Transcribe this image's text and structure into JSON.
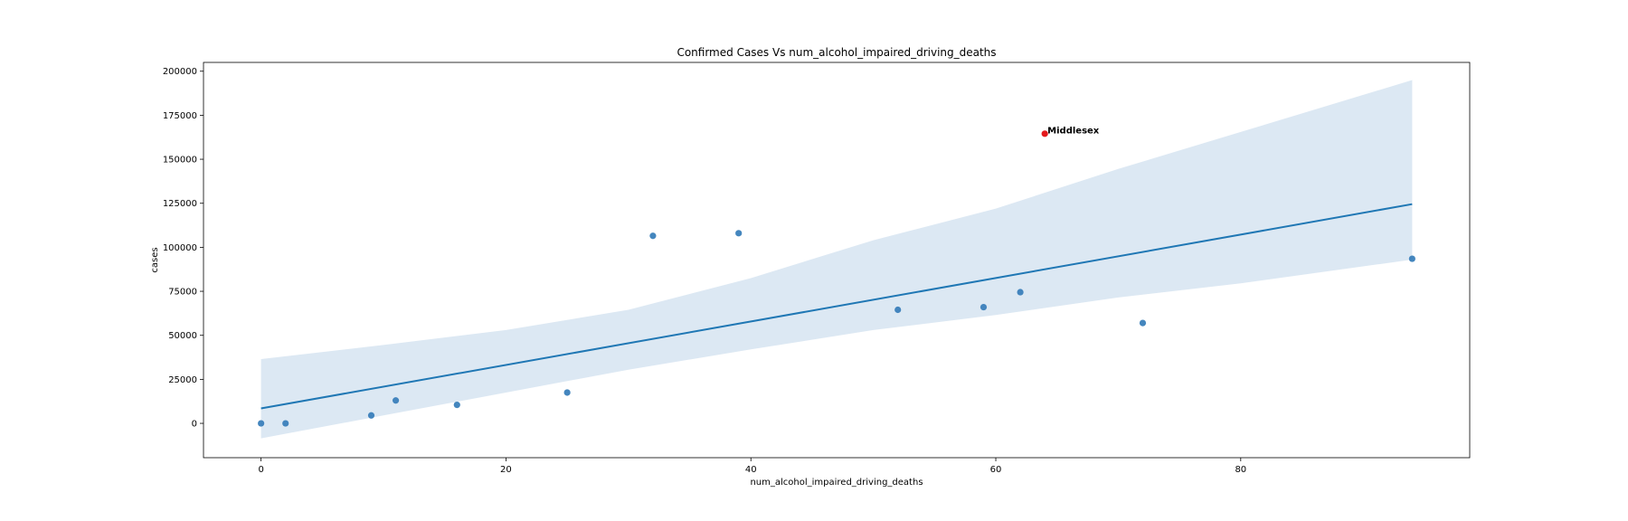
{
  "chart_data": {
    "type": "scatter",
    "title": "Confirmed Cases Vs num_alcohol_impaired_driving_deaths",
    "xlabel": "num_alcohol_impaired_driving_deaths",
    "ylabel": "cases",
    "xlim": [
      -4.7,
      98.7
    ],
    "ylim": [
      -19500,
      205000
    ],
    "xticks": [
      0,
      20,
      40,
      60,
      80
    ],
    "yticks": [
      0,
      25000,
      50000,
      75000,
      100000,
      125000,
      150000,
      175000,
      200000
    ],
    "grid": false,
    "colors": {
      "points": "#3a7fbb",
      "line": "#1f77b4",
      "band": "#dce8f3",
      "highlight": "#e41a1c"
    },
    "series": [
      {
        "values": [
          {
            "x": 0,
            "y": 0
          },
          {
            "x": 2,
            "y": 0
          },
          {
            "x": 9,
            "y": 4500
          },
          {
            "x": 11,
            "y": 13000
          },
          {
            "x": 16,
            "y": 10500
          },
          {
            "x": 25,
            "y": 17500
          },
          {
            "x": 32,
            "y": 106500
          },
          {
            "x": 39,
            "y": 108000
          },
          {
            "x": 52,
            "y": 64500
          },
          {
            "x": 59,
            "y": 66000
          },
          {
            "x": 62,
            "y": 74500
          },
          {
            "x": 72,
            "y": 57000
          },
          {
            "x": 94,
            "y": 93500
          }
        ]
      }
    ],
    "regression": {
      "start": {
        "x": 0,
        "y": 8500
      },
      "end": {
        "x": 94,
        "y": 124500
      },
      "ci_band": [
        {
          "x": 0,
          "lower": -8500,
          "upper": 36500
        },
        {
          "x": 10,
          "lower": 4500,
          "upper": 44500
        },
        {
          "x": 20,
          "lower": 17500,
          "upper": 53000
        },
        {
          "x": 30,
          "lower": 30500,
          "upper": 64500
        },
        {
          "x": 40,
          "lower": 42000,
          "upper": 82500
        },
        {
          "x": 50,
          "lower": 53000,
          "upper": 104000
        },
        {
          "x": 60,
          "lower": 61500,
          "upper": 122000
        },
        {
          "x": 70,
          "lower": 71500,
          "upper": 144500
        },
        {
          "x": 80,
          "lower": 79500,
          "upper": 165500
        },
        {
          "x": 94,
          "lower": 93000,
          "upper": 195000
        }
      ]
    },
    "highlight": {
      "x": 64,
      "y": 164500,
      "label": "Middlesex"
    }
  }
}
